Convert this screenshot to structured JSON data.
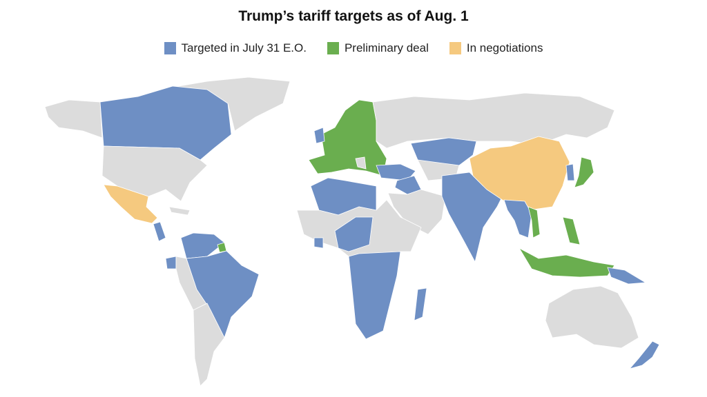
{
  "title": "Trump’s tariff targets as of Aug. 1",
  "legend": [
    {
      "label": "Targeted in July 31 E.O.",
      "color": "#6e8fc4"
    },
    {
      "label": "Preliminary deal",
      "color": "#6aae4f"
    },
    {
      "label": "In negotiations",
      "color": "#f5c97f"
    }
  ],
  "colors": {
    "no_status": "#dcdcdc"
  }
}
